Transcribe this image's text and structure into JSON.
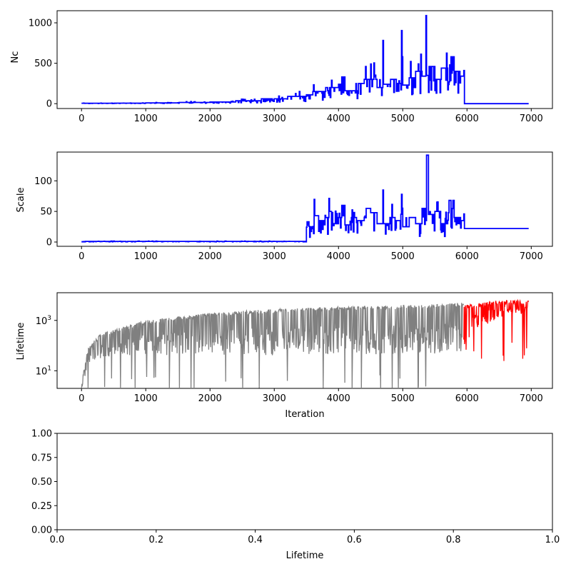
{
  "chart_data": [
    {
      "type": "line",
      "title": "",
      "xlabel": "",
      "ylabel": "Nc",
      "xlim": [
        -380,
        7330
      ],
      "ylim": [
        -60,
        1150
      ],
      "xticks": [
        0,
        1000,
        2000,
        3000,
        4000,
        5000,
        6000,
        7000
      ],
      "yticks": [
        0,
        500,
        1000
      ],
      "series": [
        {
          "color": "#0000ff",
          "x": [
            0,
            500,
            1000,
            1500,
            2000,
            2400,
            2800,
            3200,
            3500,
            3600,
            3800,
            4000,
            4050,
            4100,
            4300,
            4400,
            4600,
            4690,
            4700,
            4800,
            4900,
            4980,
            5000,
            5100,
            5180,
            5200,
            5300,
            5360,
            5370,
            5400,
            5500,
            5600,
            5700,
            5720,
            5800,
            5900,
            5950,
            5951,
            6960
          ],
          "y": [
            5,
            6,
            10,
            15,
            20,
            35,
            60,
            90,
            110,
            150,
            200,
            240,
            330,
            160,
            250,
            300,
            200,
            530,
            240,
            300,
            250,
            580,
            230,
            320,
            200,
            400,
            340,
            1090,
            350,
            460,
            300,
            440,
            280,
            580,
            400,
            340,
            410,
            0,
            0
          ],
          "noise_until": 6000
        }
      ]
    },
    {
      "type": "line",
      "title": "",
      "xlabel": "",
      "ylabel": "Scale",
      "xlim": [
        -380,
        7330
      ],
      "ylim": [
        -7,
        147
      ],
      "xticks": [
        0,
        1000,
        2000,
        3000,
        4000,
        5000,
        6000,
        7000
      ],
      "yticks": [
        0,
        50,
        100
      ],
      "series": [
        {
          "color": "#0000ff",
          "x": [
            0,
            3490,
            3500,
            3550,
            3600,
            3700,
            3800,
            3850,
            3900,
            4000,
            4050,
            4100,
            4200,
            4300,
            4400,
            4500,
            4600,
            4690,
            4700,
            4800,
            4900,
            4980,
            5000,
            5100,
            5200,
            5300,
            5360,
            5370,
            5400,
            5500,
            5600,
            5700,
            5720,
            5800,
            5900,
            5950,
            5951,
            6960
          ],
          "y": [
            1,
            1,
            33,
            25,
            43,
            35,
            40,
            50,
            30,
            40,
            60,
            28,
            40,
            35,
            55,
            48,
            30,
            85,
            30,
            40,
            35,
            78,
            25,
            40,
            30,
            55,
            35,
            142,
            45,
            50,
            30,
            48,
            68,
            40,
            35,
            46,
            22,
            22
          ],
          "noise_until": 5950
        }
      ]
    },
    {
      "type": "line",
      "title": "",
      "xlabel": "Iteration",
      "ylabel": "Lifetime",
      "yscale": "log",
      "xlim": [
        -380,
        7330
      ],
      "ylim_log10": [
        0.3,
        4.1
      ],
      "xticks": [
        0,
        1000,
        2000,
        3000,
        4000,
        5000,
        6000,
        7000
      ],
      "yticks_exponent": [
        1,
        3
      ],
      "series": [
        {
          "color": "#808080",
          "x_range": [
            0,
            5950
          ],
          "upper_log10": [
            [
              0,
              0.5
            ],
            [
              100,
              1.9
            ],
            [
              300,
              2.5
            ],
            [
              1000,
              3.0
            ],
            [
              2000,
              3.3
            ],
            [
              3000,
              3.45
            ],
            [
              4000,
              3.55
            ],
            [
              5000,
              3.6
            ],
            [
              5950,
              3.7
            ]
          ],
          "lower_log10": [
            [
              0,
              0.3
            ],
            [
              150,
              1.4
            ],
            [
              500,
              1.6
            ],
            [
              3000,
              1.6
            ],
            [
              5950,
              1.7
            ]
          ]
        },
        {
          "color": "#ff0000",
          "x_range": [
            5950,
            6960
          ],
          "upper_log10": [
            [
              5950,
              3.6
            ],
            [
              6500,
              3.8
            ],
            [
              6960,
              3.8
            ]
          ],
          "lower_log10": [
            [
              5950,
              1.2
            ],
            [
              6050,
              2.5
            ],
            [
              6500,
              3.1
            ],
            [
              6960,
              3.3
            ]
          ]
        }
      ]
    },
    {
      "type": "empty",
      "title": "",
      "xlabel": "Lifetime",
      "ylabel": "",
      "xlim": [
        0,
        1
      ],
      "ylim": [
        0,
        1
      ],
      "xticks": [
        "0.0",
        "0.2",
        "0.4",
        "0.6",
        "0.8",
        "1.0"
      ],
      "yticks": [
        "0.00",
        "0.25",
        "0.50",
        "0.75",
        "1.00"
      ]
    }
  ]
}
